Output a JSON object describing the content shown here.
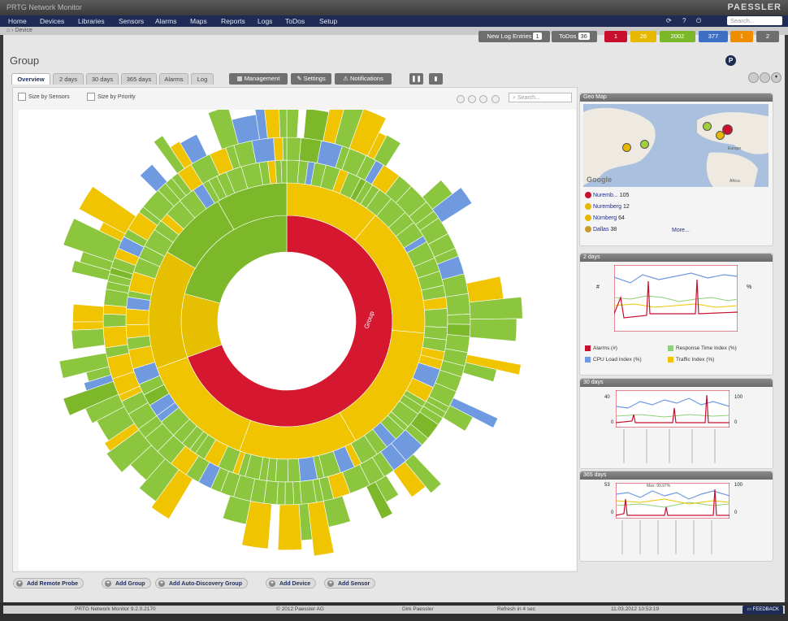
{
  "window": {
    "title": "PRTG Network Monitor",
    "brand": "PAESSLER"
  },
  "menu": {
    "items": [
      "Home",
      "Devices",
      "Libraries",
      "Sensors",
      "Alarms",
      "Maps",
      "Reports",
      "Logs",
      "ToDos",
      "Setup"
    ],
    "search_placeholder": "Search..."
  },
  "breadcrumb": "Device",
  "status": {
    "new_log_label": "New Log Entries",
    "new_log_count": "1",
    "todos_label": "ToDos",
    "todos_count": "36",
    "red": "1",
    "orange": "26",
    "green": "2002",
    "blue": "377",
    "yellow": "1",
    "grey": "2",
    "badge": "P"
  },
  "page_title": "Group",
  "tabs": [
    "Overview",
    "2 days",
    "30 days",
    "365 days",
    "Alarms",
    "Log"
  ],
  "tools": [
    "Management",
    "Settings",
    "Notifications"
  ],
  "overview": {
    "size_by_sensors": "Size by Sensors",
    "size_by_priority": "Size by Priority",
    "search_placeholder": "Search..."
  },
  "sunburst_center": "Group",
  "geomap": {
    "title": "Geo Map",
    "google": "Google",
    "map_labels": {
      "africa": "Africa",
      "europe": "Europe"
    },
    "locations": [
      {
        "name": "Nuremb...",
        "count": "105",
        "color": "#c8102e"
      },
      {
        "name": "Nuremberg",
        "count": "12",
        "color": "#e6b800"
      },
      {
        "name": "Nürnberg",
        "count": "64",
        "color": "#e6b800"
      },
      {
        "name": "Dallas",
        "count": "38",
        "color": "#c89a2a"
      }
    ],
    "more": "More..."
  },
  "graph2d": {
    "title": "2 days",
    "y_left": "#",
    "y_right": "%",
    "legend": [
      {
        "label": "Alarms (#)",
        "color": "#c8102e"
      },
      {
        "label": "Response Time Index (%)",
        "color": "#8fcf7a"
      },
      {
        "label": "CPU Load Index (%)",
        "color": "#6f9ae0"
      },
      {
        "label": "Traffic Index (%)",
        "color": "#f0c400"
      }
    ]
  },
  "graph30d": {
    "title": "30 days",
    "ymax_left": "40",
    "ymax_right": "100",
    "zero": "0"
  },
  "graph365d": {
    "title": "365 days",
    "ymax_left": "53",
    "ymax_right": "100",
    "zero": "0",
    "max_note": "Max: 99.97%"
  },
  "add_buttons": [
    "Add Remote Probe",
    "Add Group",
    "Add Auto-Discovery Group",
    "Add Device",
    "Add Sensor"
  ],
  "footer": {
    "version": "PRTG Network Monitor 9.2.0.2170",
    "copyright": "© 2012 Paessler AG",
    "user": "Dirk Paessler",
    "refresh": "Refresh in 4 sec",
    "time": "11.03.2012 10:53:19",
    "feedback": "FEEDBACK"
  }
}
